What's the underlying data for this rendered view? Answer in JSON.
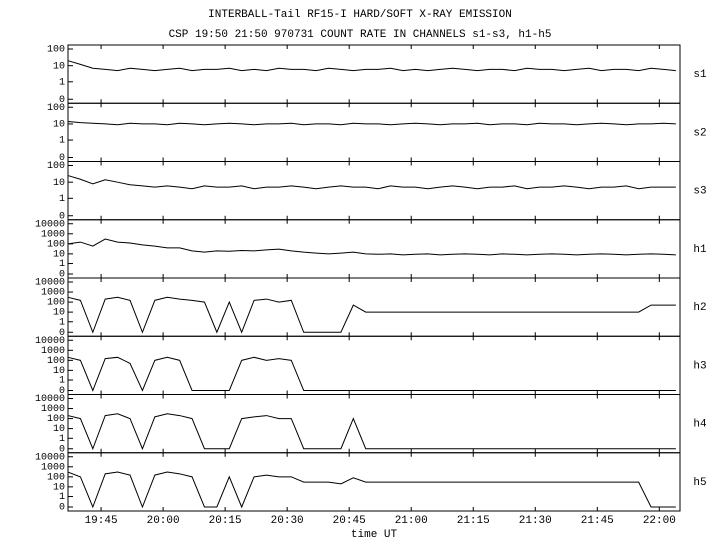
{
  "chart_data": {
    "type": "line",
    "title": "INTERBALL-Tail RF15-I HARD/SOFT X-RAY EMISSION",
    "subtitle": "CSP 19:50 21:50 970731  COUNT RATE IN CHANNELS s1-s3, h1-h5",
    "xlabel": "time UT",
    "log_scale": true,
    "color": "#000000",
    "xlim": [
      1177,
      1325
    ],
    "xticks": [
      {
        "value": 1185,
        "label": "19:45"
      },
      {
        "value": 1200,
        "label": "20:00"
      },
      {
        "value": 1215,
        "label": "20:15"
      },
      {
        "value": 1230,
        "label": "20:30"
      },
      {
        "value": 1245,
        "label": "20:45"
      },
      {
        "value": 1260,
        "label": "21:00"
      },
      {
        "value": 1275,
        "label": "21:15"
      },
      {
        "value": 1290,
        "label": "21:30"
      },
      {
        "value": 1305,
        "label": "21:45"
      },
      {
        "value": 1320,
        "label": "22:00"
      }
    ],
    "x": [
      1177,
      1180,
      1183,
      1186,
      1189,
      1192,
      1195,
      1198,
      1201,
      1204,
      1207,
      1210,
      1213,
      1216,
      1219,
      1222,
      1225,
      1228,
      1231,
      1234,
      1237,
      1240,
      1243,
      1246,
      1249,
      1252,
      1255,
      1258,
      1261,
      1264,
      1267,
      1270,
      1273,
      1276,
      1279,
      1282,
      1285,
      1288,
      1291,
      1294,
      1297,
      1300,
      1303,
      1306,
      1309,
      1312,
      1315,
      1318,
      1321,
      1324
    ],
    "series": [
      {
        "name": "s1",
        "ylim": [
          0,
          100
        ],
        "yticks": [
          100,
          10,
          1,
          0
        ],
        "values": [
          20,
          12,
          7,
          6,
          5,
          7,
          6,
          5,
          6,
          7,
          5,
          6,
          6,
          7,
          5,
          6,
          5,
          7,
          6,
          6,
          5,
          7,
          6,
          5,
          6,
          6,
          7,
          5,
          6,
          5,
          6,
          7,
          6,
          5,
          6,
          6,
          5,
          7,
          6,
          6,
          5,
          6,
          7,
          5,
          6,
          6,
          5,
          7,
          6,
          5
        ]
      },
      {
        "name": "s2",
        "ylim": [
          0,
          100
        ],
        "yticks": [
          100,
          10,
          1,
          0
        ],
        "values": [
          14,
          12,
          11,
          10,
          9,
          11,
          10,
          10,
          9,
          11,
          10,
          9,
          10,
          11,
          10,
          9,
          10,
          10,
          11,
          9,
          10,
          10,
          9,
          11,
          10,
          10,
          9,
          10,
          11,
          10,
          9,
          10,
          10,
          11,
          9,
          10,
          10,
          9,
          11,
          10,
          10,
          9,
          10,
          11,
          10,
          9,
          10,
          10,
          11,
          10
        ]
      },
      {
        "name": "s3",
        "ylim": [
          0,
          100
        ],
        "yticks": [
          100,
          10,
          1,
          0
        ],
        "values": [
          25,
          15,
          8,
          14,
          10,
          7,
          6,
          5,
          6,
          5,
          4,
          6,
          5,
          5,
          6,
          4,
          5,
          5,
          6,
          5,
          4,
          5,
          6,
          5,
          5,
          4,
          6,
          5,
          5,
          4,
          5,
          6,
          5,
          4,
          5,
          5,
          6,
          4,
          5,
          5,
          6,
          5,
          4,
          5,
          5,
          6,
          4,
          5,
          5,
          5
        ]
      },
      {
        "name": "h1",
        "ylim": [
          0,
          10000
        ],
        "yticks": [
          10000,
          1000,
          100,
          10,
          1,
          0
        ],
        "values": [
          100,
          150,
          60,
          300,
          150,
          120,
          80,
          60,
          40,
          40,
          20,
          15,
          20,
          18,
          22,
          20,
          25,
          30,
          20,
          15,
          12,
          10,
          12,
          15,
          10,
          9,
          10,
          8,
          9,
          10,
          8,
          9,
          10,
          9,
          8,
          10,
          9,
          8,
          9,
          10,
          9,
          8,
          9,
          10,
          9,
          8,
          9,
          10,
          9,
          8
        ]
      },
      {
        "name": "h2",
        "ylim": [
          0,
          10000
        ],
        "yticks": [
          10000,
          1000,
          100,
          10,
          1,
          0
        ],
        "values": [
          300,
          150,
          0,
          200,
          300,
          150,
          0,
          150,
          300,
          200,
          150,
          100,
          0,
          100,
          0,
          150,
          200,
          100,
          150,
          0,
          0,
          0,
          0,
          50,
          10,
          10,
          10,
          10,
          10,
          10,
          10,
          10,
          10,
          10,
          10,
          10,
          10,
          10,
          10,
          10,
          10,
          10,
          10,
          10,
          10,
          10,
          10,
          50,
          50,
          50
        ]
      },
      {
        "name": "h3",
        "ylim": [
          0,
          10000
        ],
        "yticks": [
          10000,
          1000,
          100,
          10,
          1,
          0
        ],
        "values": [
          200,
          100,
          0,
          150,
          200,
          50,
          0,
          100,
          200,
          100,
          0,
          0,
          0,
          0,
          100,
          200,
          100,
          150,
          100,
          0,
          0,
          0,
          0,
          0,
          0,
          0,
          0,
          0,
          0,
          0,
          0,
          0,
          0,
          0,
          0,
          0,
          0,
          0,
          0,
          0,
          0,
          0,
          0,
          0,
          0,
          0,
          0,
          0,
          0,
          0
        ]
      },
      {
        "name": "h4",
        "ylim": [
          0,
          10000
        ],
        "yticks": [
          10000,
          1000,
          100,
          10,
          1,
          0
        ],
        "values": [
          200,
          100,
          0,
          200,
          300,
          100,
          0,
          150,
          300,
          200,
          100,
          0,
          0,
          0,
          100,
          150,
          200,
          100,
          100,
          0,
          0,
          0,
          0,
          100,
          0,
          0,
          0,
          0,
          0,
          0,
          0,
          0,
          0,
          0,
          0,
          0,
          0,
          0,
          0,
          0,
          0,
          0,
          0,
          0,
          0,
          0,
          0,
          0,
          0,
          0
        ]
      },
      {
        "name": "h5",
        "ylim": [
          0,
          10000
        ],
        "yticks": [
          10000,
          1000,
          100,
          10,
          1,
          0
        ],
        "values": [
          300,
          100,
          0,
          200,
          300,
          150,
          0,
          150,
          300,
          200,
          100,
          0,
          0,
          100,
          0,
          100,
          150,
          100,
          100,
          30,
          30,
          30,
          20,
          80,
          30,
          30,
          30,
          30,
          30,
          30,
          30,
          30,
          30,
          30,
          30,
          30,
          30,
          30,
          30,
          30,
          30,
          30,
          30,
          30,
          30,
          30,
          30,
          0,
          0,
          0
        ]
      }
    ]
  }
}
